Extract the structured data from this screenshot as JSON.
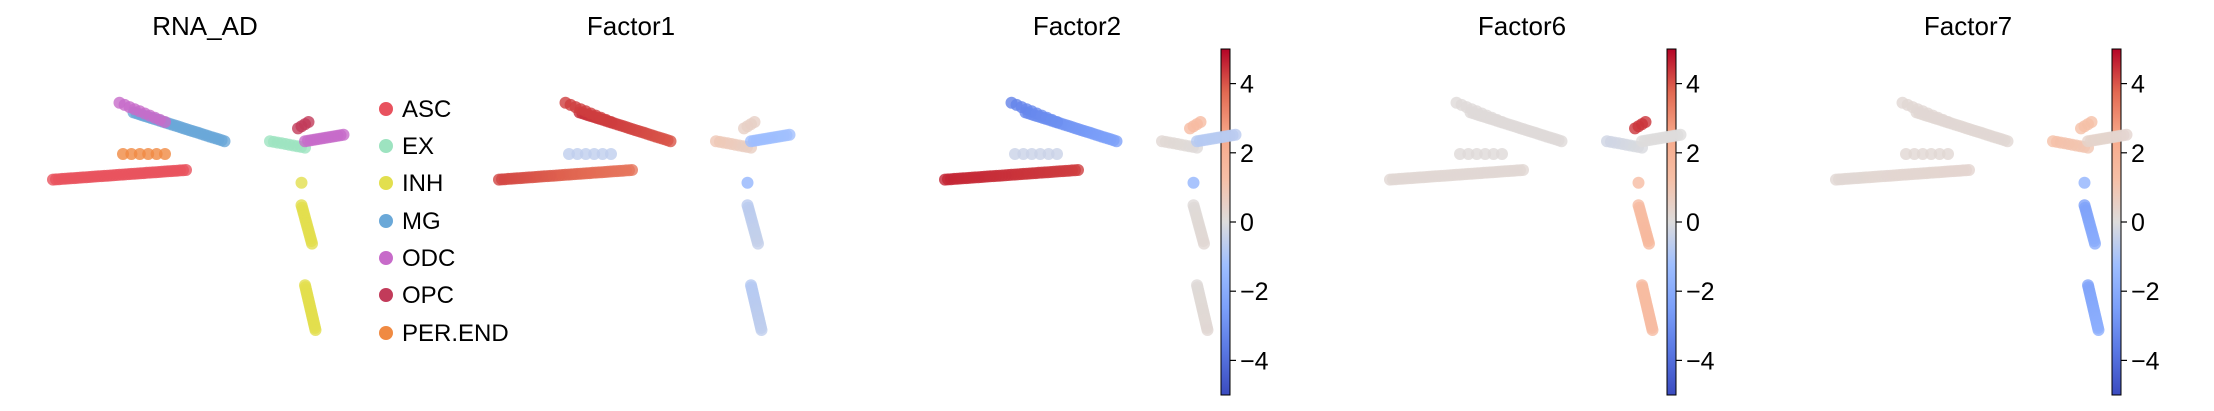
{
  "legend_colors": {
    "ASC": "#e8525e",
    "EX": "#9de3c0",
    "INH": "#e2df4e",
    "MG": "#6aa8d8",
    "ODC": "#c76bc9",
    "OPC": "#c23b5a",
    "PER.END": "#f08a42"
  },
  "colormap": "coolwarm",
  "chart_data": [
    {
      "type": "scatter",
      "title": "RNA_AD",
      "color_by": "categorical",
      "legend": {
        "placement": "right",
        "entries": [
          "ASC",
          "EX",
          "INH",
          "MG",
          "ODC",
          "OPC",
          "PER.END"
        ]
      },
      "clusters": [
        {
          "group": "ASC",
          "from": [
            0.8,
            4.1
          ],
          "to": [
            4.6,
            4.4
          ],
          "n": 45,
          "values": [
            4.0,
            4.0
          ]
        },
        {
          "group": "MG",
          "from": [
            3.1,
            6.2
          ],
          "to": [
            5.7,
            5.3
          ],
          "n": 32,
          "values": [
            -0.3,
            -0.3
          ]
        },
        {
          "group": "ODC",
          "from": [
            2.7,
            6.5
          ],
          "to": [
            4.0,
            5.9
          ],
          "n": 10,
          "values": [
            -0.3,
            -0.3
          ]
        },
        {
          "group": "PER.END",
          "from": [
            2.8,
            4.9
          ],
          "to": [
            4.0,
            4.9
          ],
          "n": 6,
          "values": [
            -0.3,
            -0.3
          ]
        },
        {
          "group": "EX",
          "from": [
            7.0,
            5.3
          ],
          "to": [
            8.0,
            5.1
          ],
          "n": 10,
          "values": [
            -0.3,
            -0.3
          ]
        },
        {
          "group": "OPC",
          "from": [
            7.8,
            5.7
          ],
          "to": [
            8.1,
            5.9
          ],
          "n": 4,
          "values": [
            -0.3,
            -0.3
          ]
        },
        {
          "group": "ODC",
          "from": [
            8.0,
            5.3
          ],
          "to": [
            9.1,
            5.5
          ],
          "n": 14,
          "values": [
            -0.3,
            -0.3
          ]
        },
        {
          "group": "INH",
          "from": [
            7.9,
            4.0
          ],
          "to": [
            8.0,
            4.0
          ],
          "n": 1,
          "values": [
            -0.3,
            -0.3
          ]
        },
        {
          "group": "INH",
          "from": [
            7.9,
            3.3
          ],
          "to": [
            8.2,
            2.1
          ],
          "n": 16,
          "values": [
            -0.3,
            -0.3
          ]
        },
        {
          "group": "INH",
          "from": [
            8.0,
            0.8
          ],
          "to": [
            8.3,
            -0.6
          ],
          "n": 22,
          "values": [
            -0.3,
            -0.3
          ]
        }
      ]
    },
    {
      "type": "scatter",
      "title": "Factor1",
      "color_by": "continuous",
      "colorbar": {
        "min": -5,
        "max": 5,
        "ticks": [
          4,
          2,
          0,
          -2,
          -4
        ],
        "tick_labels": [
          "4",
          "2",
          "0",
          "−2",
          "−4"
        ]
      },
      "clusters": [
        {
          "group": "ASC",
          "from": [
            0.8,
            4.1
          ],
          "to": [
            4.6,
            4.4
          ],
          "n": 45,
          "values": [
            4.2,
            3.5
          ]
        },
        {
          "group": "MG",
          "from": [
            3.1,
            6.2
          ],
          "to": [
            5.7,
            5.3
          ],
          "n": 32,
          "values": [
            4.5,
            4.0
          ]
        },
        {
          "group": "ODC",
          "from": [
            2.7,
            6.5
          ],
          "to": [
            4.0,
            5.9
          ],
          "n": 10,
          "values": [
            4.3,
            4.3
          ]
        },
        {
          "group": "PER.END",
          "from": [
            2.8,
            4.9
          ],
          "to": [
            4.0,
            4.9
          ],
          "n": 6,
          "values": [
            -0.6,
            -0.6
          ]
        },
        {
          "group": "EX",
          "from": [
            7.0,
            5.3
          ],
          "to": [
            8.0,
            5.1
          ],
          "n": 10,
          "values": [
            0.9,
            0.6
          ]
        },
        {
          "group": "OPC",
          "from": [
            7.8,
            5.7
          ],
          "to": [
            8.1,
            5.9
          ],
          "n": 4,
          "values": [
            0.5,
            0.5
          ]
        },
        {
          "group": "ODC",
          "from": [
            8.0,
            5.3
          ],
          "to": [
            9.1,
            5.5
          ],
          "n": 14,
          "values": [
            -1.3,
            -1.2
          ]
        },
        {
          "group": "INH",
          "from": [
            7.9,
            4.0
          ],
          "to": [
            8.0,
            4.0
          ],
          "n": 1,
          "values": [
            -1.6,
            -1.6
          ]
        },
        {
          "group": "INH",
          "from": [
            7.9,
            3.3
          ],
          "to": [
            8.2,
            2.1
          ],
          "n": 16,
          "values": [
            -0.7,
            -0.5
          ]
        },
        {
          "group": "INH",
          "from": [
            8.0,
            0.8
          ],
          "to": [
            8.3,
            -0.6
          ],
          "n": 22,
          "values": [
            -0.8,
            -0.6
          ]
        }
      ]
    },
    {
      "type": "scatter",
      "title": "Factor2",
      "color_by": "continuous",
      "colorbar": {
        "min": -5,
        "max": 5,
        "ticks": [
          4,
          2,
          0,
          -2,
          -4
        ],
        "tick_labels": [
          "4",
          "2",
          "0",
          "−2",
          "−4"
        ]
      },
      "clusters": [
        {
          "group": "ASC",
          "from": [
            0.8,
            4.1
          ],
          "to": [
            4.6,
            4.4
          ],
          "n": 45,
          "values": [
            4.6,
            4.3
          ]
        },
        {
          "group": "MG",
          "from": [
            3.1,
            6.2
          ],
          "to": [
            5.7,
            5.3
          ],
          "n": 32,
          "values": [
            -3.2,
            -2.4
          ]
        },
        {
          "group": "ODC",
          "from": [
            2.7,
            6.5
          ],
          "to": [
            4.0,
            5.9
          ],
          "n": 10,
          "values": [
            -3.4,
            -3.0
          ]
        },
        {
          "group": "PER.END",
          "from": [
            2.8,
            4.9
          ],
          "to": [
            4.0,
            4.9
          ],
          "n": 6,
          "values": [
            -0.4,
            -0.4
          ]
        },
        {
          "group": "EX",
          "from": [
            7.0,
            5.3
          ],
          "to": [
            8.0,
            5.1
          ],
          "n": 10,
          "values": [
            0.2,
            0.1
          ]
        },
        {
          "group": "OPC",
          "from": [
            7.8,
            5.7
          ],
          "to": [
            8.1,
            5.9
          ],
          "n": 4,
          "values": [
            1.4,
            1.4
          ]
        },
        {
          "group": "ODC",
          "from": [
            8.0,
            5.3
          ],
          "to": [
            9.1,
            5.5
          ],
          "n": 14,
          "values": [
            -0.8,
            -0.7
          ]
        },
        {
          "group": "INH",
          "from": [
            7.9,
            4.0
          ],
          "to": [
            8.0,
            4.0
          ],
          "n": 1,
          "values": [
            -1.6,
            -1.6
          ]
        },
        {
          "group": "INH",
          "from": [
            7.9,
            3.3
          ],
          "to": [
            8.2,
            2.1
          ],
          "n": 16,
          "values": [
            0.1,
            0.2
          ]
        },
        {
          "group": "INH",
          "from": [
            8.0,
            0.8
          ],
          "to": [
            8.3,
            -0.6
          ],
          "n": 22,
          "values": [
            0.1,
            0.2
          ]
        }
      ]
    },
    {
      "type": "scatter",
      "title": "Factor6",
      "color_by": "continuous",
      "colorbar": {
        "min": -5,
        "max": 5,
        "ticks": [
          4,
          2,
          0,
          -2,
          -4
        ],
        "tick_labels": [
          "4",
          "2",
          "0",
          "−2",
          "−4"
        ]
      },
      "clusters": [
        {
          "group": "ASC",
          "from": [
            0.8,
            4.1
          ],
          "to": [
            4.6,
            4.4
          ],
          "n": 45,
          "values": [
            0.2,
            0.2
          ]
        },
        {
          "group": "MG",
          "from": [
            3.1,
            6.2
          ],
          "to": [
            5.7,
            5.3
          ],
          "n": 32,
          "values": [
            0.1,
            0.1
          ]
        },
        {
          "group": "ODC",
          "from": [
            2.7,
            6.5
          ],
          "to": [
            4.0,
            5.9
          ],
          "n": 10,
          "values": [
            0.1,
            0.1
          ]
        },
        {
          "group": "PER.END",
          "from": [
            2.8,
            4.9
          ],
          "to": [
            4.0,
            4.9
          ],
          "n": 6,
          "values": [
            0.1,
            0.1
          ]
        },
        {
          "group": "EX",
          "from": [
            7.0,
            5.3
          ],
          "to": [
            8.0,
            5.1
          ],
          "n": 10,
          "values": [
            -0.3,
            -0.1
          ]
        },
        {
          "group": "OPC",
          "from": [
            7.8,
            5.7
          ],
          "to": [
            8.1,
            5.9
          ],
          "n": 4,
          "values": [
            4.4,
            4.4
          ]
        },
        {
          "group": "ODC",
          "from": [
            8.0,
            5.3
          ],
          "to": [
            9.1,
            5.5
          ],
          "n": 14,
          "values": [
            0.0,
            0.0
          ]
        },
        {
          "group": "INH",
          "from": [
            7.9,
            4.0
          ],
          "to": [
            8.0,
            4.0
          ],
          "n": 1,
          "values": [
            1.4,
            1.4
          ]
        },
        {
          "group": "INH",
          "from": [
            7.9,
            3.3
          ],
          "to": [
            8.2,
            2.1
          ],
          "n": 16,
          "values": [
            1.4,
            1.6
          ]
        },
        {
          "group": "INH",
          "from": [
            8.0,
            0.8
          ],
          "to": [
            8.3,
            -0.6
          ],
          "n": 22,
          "values": [
            1.5,
            1.4
          ]
        }
      ]
    },
    {
      "type": "scatter",
      "title": "Factor7",
      "color_by": "continuous",
      "colorbar": {
        "min": -5,
        "max": 5,
        "ticks": [
          4,
          2,
          0,
          -2,
          -4
        ],
        "tick_labels": [
          "4",
          "2",
          "0",
          "−2",
          "−4"
        ]
      },
      "clusters": [
        {
          "group": "ASC",
          "from": [
            0.8,
            4.1
          ],
          "to": [
            4.6,
            4.4
          ],
          "n": 45,
          "values": [
            0.2,
            0.3
          ]
        },
        {
          "group": "MG",
          "from": [
            3.1,
            6.2
          ],
          "to": [
            5.7,
            5.3
          ],
          "n": 32,
          "values": [
            0.2,
            0.2
          ]
        },
        {
          "group": "ODC",
          "from": [
            2.7,
            6.5
          ],
          "to": [
            4.0,
            5.9
          ],
          "n": 10,
          "values": [
            0.2,
            0.2
          ]
        },
        {
          "group": "PER.END",
          "from": [
            2.8,
            4.9
          ],
          "to": [
            4.0,
            4.9
          ],
          "n": 6,
          "values": [
            0.2,
            0.2
          ]
        },
        {
          "group": "EX",
          "from": [
            7.0,
            5.3
          ],
          "to": [
            8.0,
            5.1
          ],
          "n": 10,
          "values": [
            1.2,
            1.0
          ]
        },
        {
          "group": "OPC",
          "from": [
            7.8,
            5.7
          ],
          "to": [
            8.1,
            5.9
          ],
          "n": 4,
          "values": [
            1.2,
            1.2
          ]
        },
        {
          "group": "ODC",
          "from": [
            8.0,
            5.3
          ],
          "to": [
            9.1,
            5.5
          ],
          "n": 14,
          "values": [
            0.4,
            0.3
          ]
        },
        {
          "group": "INH",
          "from": [
            7.9,
            4.0
          ],
          "to": [
            8.0,
            4.0
          ],
          "n": 1,
          "values": [
            -1.7,
            -1.7
          ]
        },
        {
          "group": "INH",
          "from": [
            7.9,
            3.3
          ],
          "to": [
            8.2,
            2.1
          ],
          "n": 16,
          "values": [
            -2.4,
            -2.0
          ]
        },
        {
          "group": "INH",
          "from": [
            8.0,
            0.8
          ],
          "to": [
            8.3,
            -0.6
          ],
          "n": 22,
          "values": [
            -2.3,
            -1.9
          ]
        }
      ]
    }
  ]
}
